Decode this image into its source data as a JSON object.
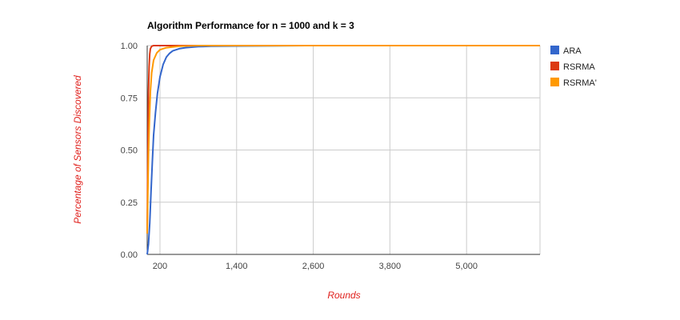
{
  "chart_data": {
    "type": "line",
    "title": "Algorithm Performance for n = 1000 and k = 3",
    "xlabel": "Rounds",
    "ylabel": "Percentage of Sensors Discovered",
    "xlim": [
      0,
      6150
    ],
    "ylim": [
      0,
      1
    ],
    "x_ticks": [
      200,
      1400,
      2600,
      3800,
      5000
    ],
    "x_tick_labels": [
      "200",
      "1,400",
      "2,600",
      "3,800",
      "5,000"
    ],
    "y_ticks": [
      0,
      0.25,
      0.5,
      0.75,
      1
    ],
    "y_tick_labels": [
      "0.00",
      "0.25",
      "0.50",
      "0.75",
      "1.00"
    ],
    "grid": true,
    "legend_position": "right",
    "series": [
      {
        "name": "ARA",
        "color": "#3366cc",
        "points": [
          [
            0,
            0
          ],
          [
            20,
            0.05
          ],
          [
            40,
            0.15
          ],
          [
            60,
            0.3
          ],
          [
            80,
            0.44
          ],
          [
            100,
            0.57
          ],
          [
            130,
            0.68
          ],
          [
            160,
            0.77
          ],
          [
            200,
            0.85
          ],
          [
            250,
            0.91
          ],
          [
            300,
            0.945
          ],
          [
            350,
            0.963
          ],
          [
            400,
            0.975
          ],
          [
            500,
            0.985
          ],
          [
            600,
            0.99
          ],
          [
            800,
            0.995
          ],
          [
            1000,
            0.997
          ],
          [
            1400,
            0.998
          ],
          [
            2000,
            0.999
          ],
          [
            2600,
            1.0
          ],
          [
            6150,
            1.0
          ]
        ]
      },
      {
        "name": "RSRMA",
        "color": "#dc3912",
        "points": [
          [
            0,
            0.1
          ],
          [
            5,
            0.3
          ],
          [
            10,
            0.5
          ],
          [
            15,
            0.65
          ],
          [
            20,
            0.78
          ],
          [
            30,
            0.9
          ],
          [
            40,
            0.96
          ],
          [
            50,
            0.985
          ],
          [
            70,
            0.997
          ],
          [
            100,
            1.0
          ],
          [
            6150,
            1.0
          ]
        ]
      },
      {
        "name": "RSRMA'",
        "color": "#ff9900",
        "points": [
          [
            0,
            0.1
          ],
          [
            10,
            0.3
          ],
          [
            20,
            0.48
          ],
          [
            35,
            0.65
          ],
          [
            50,
            0.78
          ],
          [
            70,
            0.87
          ],
          [
            100,
            0.93
          ],
          [
            150,
            0.965
          ],
          [
            200,
            0.98
          ],
          [
            300,
            0.99
          ],
          [
            500,
            0.997
          ],
          [
            800,
            1.0
          ],
          [
            6150,
            1.0
          ]
        ]
      }
    ]
  }
}
